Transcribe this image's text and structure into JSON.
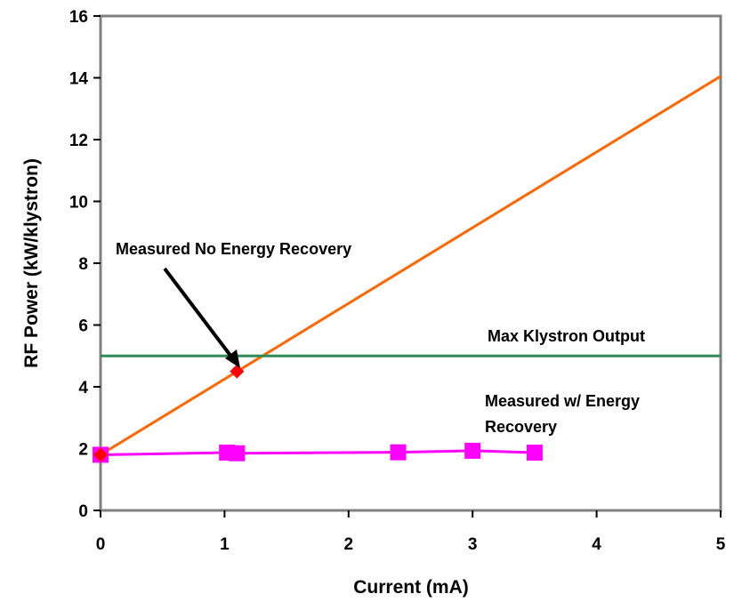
{
  "chart_data": {
    "type": "line",
    "xlabel": "Current (mA)",
    "ylabel": "RF Power (kW/klystron)",
    "xlim": [
      0,
      5
    ],
    "ylim": [
      0,
      16
    ],
    "x_ticks": [
      "0",
      "1",
      "2",
      "3",
      "4",
      "5"
    ],
    "y_ticks": [
      "0",
      "2",
      "4",
      "6",
      "8",
      "10",
      "12",
      "14",
      "16"
    ],
    "grid": false,
    "series": [
      {
        "color": "#ff6600",
        "marker": "none",
        "x": [
          0,
          5
        ],
        "y": [
          1.8,
          14.05
        ]
      },
      {
        "color": "#2e8b57",
        "marker": "none",
        "x": [
          0,
          5
        ],
        "y": [
          5.0,
          5.0
        ]
      },
      {
        "color": "#ff00ff",
        "marker": "square",
        "x": [
          0,
          1.02,
          1.1,
          2.4,
          3.0,
          3.5
        ],
        "y": [
          1.8,
          1.87,
          1.85,
          1.88,
          1.93,
          1.87
        ]
      },
      {
        "color": "#ff0000",
        "marker": "diamond",
        "x": [
          0,
          1.1
        ],
        "y": [
          1.8,
          4.5
        ]
      }
    ],
    "annotations": [
      {
        "text": "Measured No Energy Recovery"
      },
      {
        "text": "Max Klystron Output"
      },
      {
        "text": "Measured w/ Energy",
        "text2": "Recovery"
      }
    ]
  }
}
